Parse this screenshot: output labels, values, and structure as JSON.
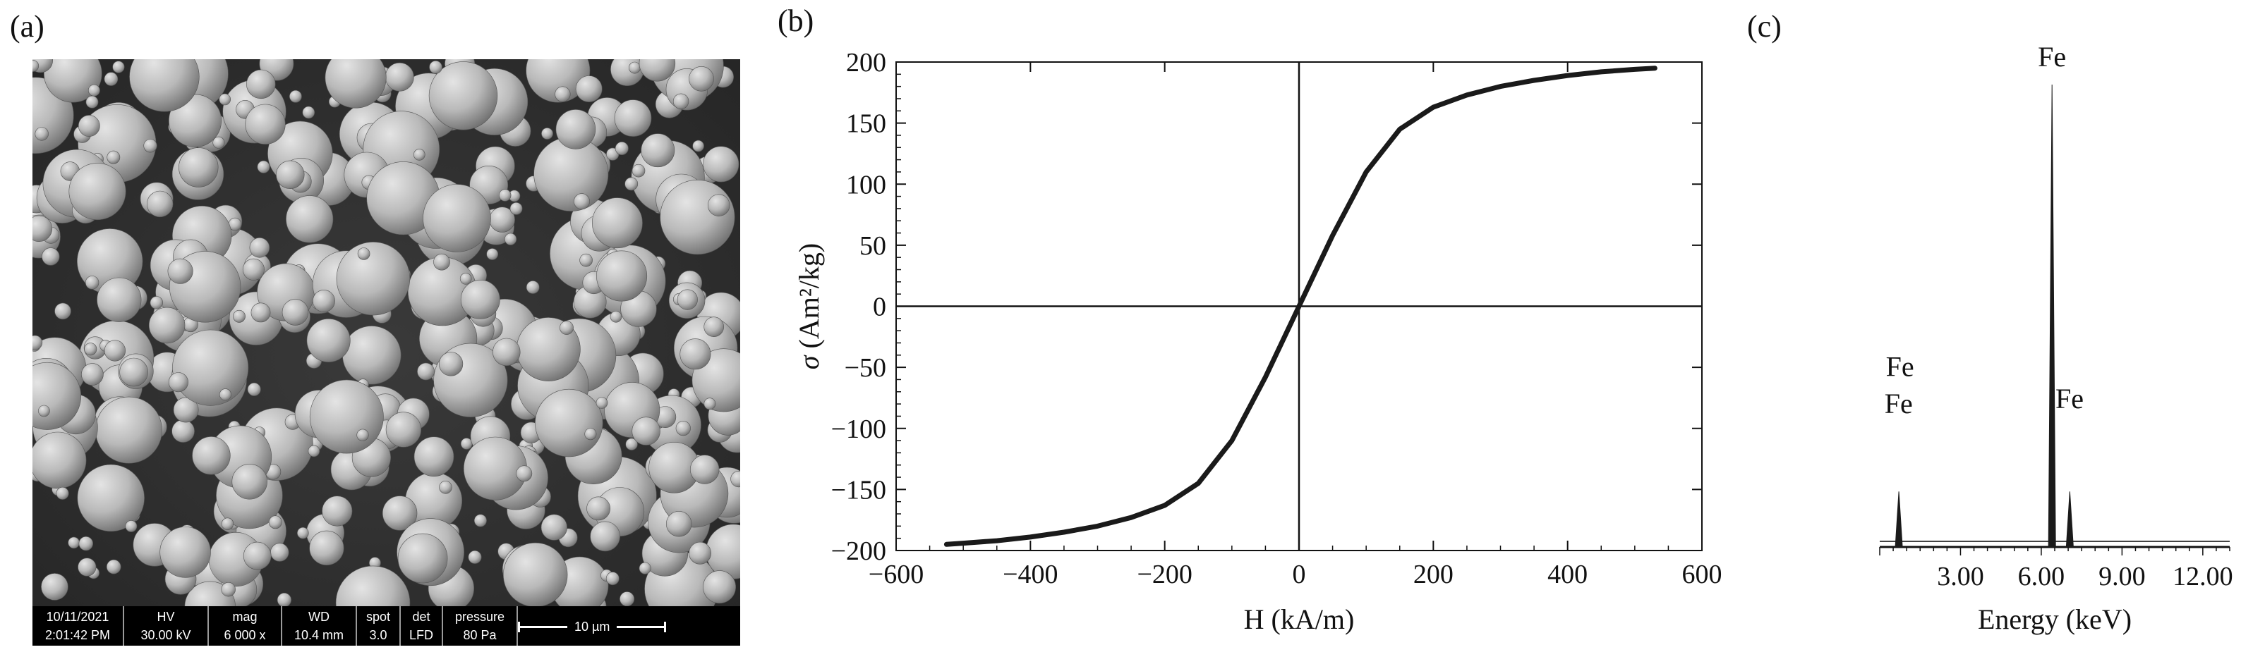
{
  "panels": {
    "a_label": "(a)",
    "b_label": "(b)",
    "c_label": "(c)"
  },
  "sem": {
    "info_bar": [
      {
        "top": "10/11/2021",
        "bottom": "2:01:42 PM"
      },
      {
        "top": "HV",
        "bottom": "30.00 kV"
      },
      {
        "top": "mag",
        "bottom": "6 000 x"
      },
      {
        "top": "WD",
        "bottom": "10.4 mm"
      },
      {
        "top": "spot",
        "bottom": "3.0"
      },
      {
        "top": "det",
        "bottom": "LFD"
      },
      {
        "top": "pressure",
        "bottom": "80 Pa"
      }
    ],
    "scale_bar_label": "10 µm"
  },
  "chart_data": [
    {
      "panel": "b",
      "type": "line",
      "xlabel": "H (kA/m)",
      "ylabel_symbol": "σ",
      "ylabel_unit": "(Am²/kg)",
      "xlim": [
        -600,
        600
      ],
      "ylim": [
        -200,
        200
      ],
      "x_ticks": [
        -600,
        -400,
        -200,
        0,
        200,
        400,
        600
      ],
      "x_tick_labels": [
        "−600",
        "−400",
        "−200",
        "0",
        "200",
        "400",
        "600"
      ],
      "y_ticks": [
        200,
        150,
        100,
        50,
        0,
        -50,
        -100,
        -150,
        -200
      ],
      "y_tick_labels": [
        "200",
        "150",
        "100",
        "50",
        "0",
        "−50",
        "−100",
        "−150",
        "−200"
      ],
      "series": [
        {
          "x": [
            -525,
            -500,
            -450,
            -400,
            -350,
            -300,
            -250,
            -200,
            -150,
            -100,
            -50,
            0,
            50,
            100,
            150,
            200,
            250,
            300,
            350,
            400,
            450,
            500,
            530
          ],
          "y": [
            -195,
            -194,
            -192,
            -189,
            -185,
            -180,
            -173,
            -163,
            -145,
            -110,
            -58,
            0,
            58,
            110,
            145,
            163,
            173,
            180,
            185,
            189,
            192,
            194,
            195
          ]
        }
      ],
      "axes_lines_at_zero": true,
      "grid": false,
      "color": "#1a1a1a"
    },
    {
      "panel": "c",
      "type": "line",
      "xlabel": "Energy (keV)",
      "x_ticks": [
        3.0,
        6.0,
        9.0,
        12.0
      ],
      "x_tick_labels": [
        "3.00",
        "6.00",
        "9.00",
        "12.00"
      ],
      "xlim": [
        0,
        13
      ],
      "ylim": [
        0,
        100
      ],
      "annotations": [
        {
          "text": "Fe",
          "x": 0.7,
          "y": 29
        },
        {
          "text": "Fe",
          "x": 0.75,
          "y": 37
        },
        {
          "text": "Fe",
          "x": 6.4,
          "y": 104
        },
        {
          "text": "Fe",
          "x": 7.05,
          "y": 30
        }
      ],
      "peaks": [
        {
          "x": 0.71,
          "y": 12
        },
        {
          "x": 6.4,
          "y": 100
        },
        {
          "x": 7.06,
          "y": 12
        }
      ],
      "color": "#1a1a1a"
    }
  ]
}
